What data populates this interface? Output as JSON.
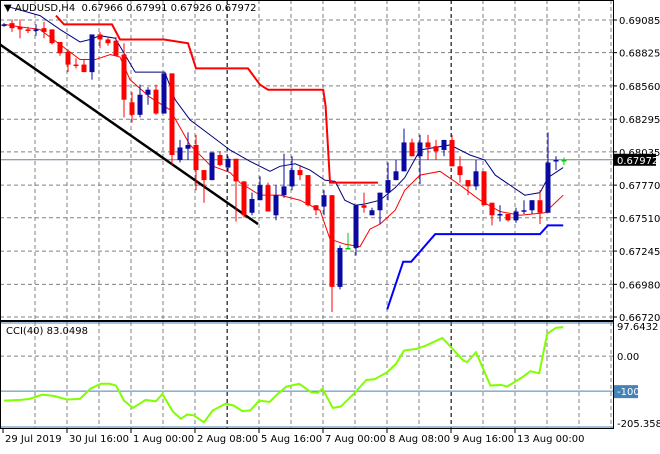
{
  "header": {
    "symbol": "AUDUSD,H4",
    "open": "0.67966",
    "high": "0.67991",
    "low": "0.67926",
    "close": "0.67972"
  },
  "colors": {
    "bull": "#0a0aa0",
    "bear": "#ff0000",
    "doji": "#00cc00",
    "resistance": "#ff0000",
    "support": "#0000ff",
    "fast_ma": "#ff0000",
    "slow_ma": "#000080",
    "trendline": "#000000",
    "cci": "#80ff00",
    "level": "#4682b4",
    "grid": "#808080"
  },
  "chart_data": [
    {
      "type": "candlestick",
      "title": "AUDUSD,H4",
      "price_ticks": [
        "0.69085",
        "0.68825",
        "0.68560",
        "0.68295",
        "0.68035",
        "0.67770",
        "0.67510",
        "0.67245",
        "0.66980",
        "0.66720"
      ],
      "ylim": [
        0.6672,
        0.69085
      ],
      "current_price": "0.67972",
      "x_labels": [
        {
          "index": 1,
          "label": "29 Jul 2019"
        },
        {
          "index": 9,
          "label": "30 Jul 16:00"
        },
        {
          "index": 17,
          "label": "1 Aug 00:00"
        },
        {
          "index": 25,
          "label": "2 Aug 08:00"
        },
        {
          "index": 33,
          "label": "5 Aug 16:00"
        },
        {
          "index": 41,
          "label": "7 Aug 00:00"
        },
        {
          "index": 49,
          "label": "8 Aug 08:00"
        },
        {
          "index": 57,
          "label": "9 Aug 16:00"
        },
        {
          "index": 65,
          "label": "13 Aug 00:00"
        }
      ],
      "candles_ohlc": [
        [
          0.6904,
          0.6906,
          0.6903,
          0.6905
        ],
        [
          0.6906,
          0.6909,
          0.6899,
          0.6902
        ],
        [
          0.6903,
          0.6909,
          0.6894,
          0.6901
        ],
        [
          0.6901,
          0.6903,
          0.6898,
          0.69
        ],
        [
          0.69,
          0.6905,
          0.6896,
          0.6901
        ],
        [
          0.6902,
          0.6907,
          0.6894,
          0.6899
        ],
        [
          0.6901,
          0.6901,
          0.6889,
          0.689
        ],
        [
          0.6891,
          0.6891,
          0.688,
          0.6882
        ],
        [
          0.6883,
          0.6885,
          0.6867,
          0.6873
        ],
        [
          0.6873,
          0.6878,
          0.687,
          0.6872
        ],
        [
          0.6873,
          0.6877,
          0.6867,
          0.6867
        ],
        [
          0.6867,
          0.6897,
          0.6861,
          0.6897
        ],
        [
          0.6897,
          0.6899,
          0.6886,
          0.6893
        ],
        [
          0.6893,
          0.6895,
          0.6888,
          0.689
        ],
        [
          0.6892,
          0.6895,
          0.688,
          0.688
        ],
        [
          0.6881,
          0.689,
          0.6831,
          0.6845
        ],
        [
          0.6843,
          0.6851,
          0.6827,
          0.6833
        ],
        [
          0.6833,
          0.6857,
          0.6831,
          0.6849
        ],
        [
          0.6849,
          0.6855,
          0.6841,
          0.6853
        ],
        [
          0.6853,
          0.6857,
          0.6833,
          0.6834
        ],
        [
          0.6834,
          0.6866,
          0.6834,
          0.6866
        ],
        [
          0.6866,
          0.6866,
          0.6793,
          0.6801
        ],
        [
          0.6797,
          0.6813,
          0.6795,
          0.6807
        ],
        [
          0.6806,
          0.6819,
          0.6797,
          0.6809
        ],
        [
          0.6809,
          0.6817,
          0.6773,
          0.6789
        ],
        [
          0.6789,
          0.6789,
          0.6763,
          0.6781
        ],
        [
          0.6781,
          0.6803,
          0.6781,
          0.6803
        ],
        [
          0.6801,
          0.6804,
          0.6792,
          0.6793
        ],
        [
          0.6791,
          0.68,
          0.6788,
          0.6798
        ],
        [
          0.6798,
          0.6798,
          0.6748,
          0.678
        ],
        [
          0.678,
          0.678,
          0.6751,
          0.6753
        ],
        [
          0.6755,
          0.6771,
          0.6753,
          0.6766
        ],
        [
          0.6765,
          0.6784,
          0.6765,
          0.6777
        ],
        [
          0.6777,
          0.6779,
          0.6756,
          0.6756
        ],
        [
          0.6753,
          0.6777,
          0.6749,
          0.6769
        ],
        [
          0.6769,
          0.6802,
          0.6767,
          0.6776
        ],
        [
          0.6776,
          0.68,
          0.6773,
          0.6789
        ],
        [
          0.6789,
          0.6793,
          0.6781,
          0.6785
        ],
        [
          0.6785,
          0.6785,
          0.676,
          0.6761
        ],
        [
          0.6761,
          0.6761,
          0.6753,
          0.6757
        ],
        [
          0.676,
          0.6773,
          0.6753,
          0.6769
        ],
        [
          0.6769,
          0.6769,
          0.6676,
          0.6696
        ],
        [
          0.6696,
          0.6729,
          0.6694,
          0.6727
        ],
        [
          0.6727,
          0.6739,
          0.6726,
          0.6727
        ],
        [
          0.6727,
          0.6761,
          0.6721,
          0.6761
        ],
        [
          0.6761,
          0.6771,
          0.6755,
          0.6759
        ],
        [
          0.6753,
          0.6759,
          0.6753,
          0.6757
        ],
        [
          0.6757,
          0.6771,
          0.6746,
          0.6771
        ],
        [
          0.6771,
          0.6795,
          0.6765,
          0.6781
        ],
        [
          0.6781,
          0.6797,
          0.6781,
          0.6788
        ],
        [
          0.6788,
          0.6822,
          0.6788,
          0.6811
        ],
        [
          0.6811,
          0.6814,
          0.68,
          0.68
        ],
        [
          0.68,
          0.6817,
          0.6778,
          0.6811
        ],
        [
          0.6811,
          0.6817,
          0.6797,
          0.6807
        ],
        [
          0.6808,
          0.6813,
          0.6797,
          0.6804
        ],
        [
          0.6805,
          0.6813,
          0.68,
          0.6813
        ],
        [
          0.6813,
          0.6817,
          0.6792,
          0.6792
        ],
        [
          0.6792,
          0.68,
          0.6779,
          0.6785
        ],
        [
          0.6781,
          0.6781,
          0.6769,
          0.6776
        ],
        [
          0.6776,
          0.6797,
          0.6773,
          0.6788
        ],
        [
          0.6788,
          0.6788,
          0.6761,
          0.6761
        ],
        [
          0.6763,
          0.6763,
          0.6745,
          0.6753
        ],
        [
          0.6753,
          0.6761,
          0.6748,
          0.6754
        ],
        [
          0.6754,
          0.6754,
          0.6748,
          0.6749
        ],
        [
          0.6749,
          0.6759,
          0.6747,
          0.6756
        ],
        [
          0.6756,
          0.6765,
          0.6754,
          0.6757
        ],
        [
          0.6757,
          0.6765,
          0.6754,
          0.6765
        ],
        [
          0.6765,
          0.6773,
          0.6746,
          0.6755
        ],
        [
          0.6755,
          0.6819,
          0.6755,
          0.6795
        ],
        [
          0.6796,
          0.68,
          0.6789,
          0.6797
        ],
        [
          0.6797,
          0.6799,
          0.6793,
          0.6797
        ]
      ],
      "resistance_line": [
        [
          7.5,
          0.6912
        ],
        [
          8.5,
          0.6905
        ],
        [
          14.5,
          0.6905
        ],
        [
          15.5,
          0.6893
        ],
        [
          21,
          0.6893
        ],
        [
          24,
          0.689
        ],
        [
          25,
          0.687
        ],
        [
          31.5,
          0.687
        ],
        [
          33,
          0.6857
        ],
        [
          34,
          0.6853
        ],
        [
          40.9,
          0.6853
        ],
        [
          41.2,
          0.684
        ],
        [
          41.75,
          0.6779
        ],
        [
          47.75,
          0.6779
        ]
      ],
      "support_line": [
        [
          48.9,
          0.6678
        ],
        [
          50.9,
          0.6716
        ],
        [
          51.9,
          0.6716
        ],
        [
          54.9,
          0.6738
        ],
        [
          68,
          0.6738
        ],
        [
          69,
          0.6745
        ],
        [
          70.9,
          0.6745
        ]
      ],
      "trendline": [
        [
          0.5,
          0.6889
        ],
        [
          32.75,
          0.6746
        ]
      ],
      "fast_ma": [
        [
          1,
          0.6905
        ],
        [
          3,
          0.6903
        ],
        [
          5.5,
          0.6901
        ],
        [
          8,
          0.6889
        ],
        [
          10.5,
          0.6877
        ],
        [
          12.4,
          0.6877
        ],
        [
          14.3,
          0.6881
        ],
        [
          15.5,
          0.6879
        ],
        [
          16.75,
          0.6861
        ],
        [
          19.25,
          0.6847
        ],
        [
          21.75,
          0.6837
        ],
        [
          24.25,
          0.6809
        ],
        [
          26.75,
          0.6793
        ],
        [
          29.25,
          0.6787
        ],
        [
          30.5,
          0.6779
        ],
        [
          33,
          0.6769
        ],
        [
          35.5,
          0.6769
        ],
        [
          38,
          0.6765
        ],
        [
          40.5,
          0.6757
        ],
        [
          41.75,
          0.6734
        ],
        [
          43.6,
          0.673
        ],
        [
          45.5,
          0.6728
        ],
        [
          46.75,
          0.6742
        ],
        [
          48,
          0.6746
        ],
        [
          49.9,
          0.6757
        ],
        [
          51.1,
          0.6773
        ],
        [
          53,
          0.6785
        ],
        [
          55.5,
          0.6788
        ],
        [
          58,
          0.6777
        ],
        [
          60.5,
          0.6765
        ],
        [
          63,
          0.6756
        ],
        [
          65.5,
          0.6753
        ],
        [
          68.6,
          0.6755
        ],
        [
          70.9,
          0.6769
        ]
      ],
      "slow_ma": [
        [
          1,
          0.692
        ],
        [
          5.5,
          0.6912
        ],
        [
          8,
          0.6901
        ],
        [
          10.5,
          0.6891
        ],
        [
          11.75,
          0.6893
        ],
        [
          13,
          0.6896
        ],
        [
          14.9,
          0.6894
        ],
        [
          16.1,
          0.6881
        ],
        [
          17.4,
          0.6867
        ],
        [
          21.1,
          0.6867
        ],
        [
          22.4,
          0.6845
        ],
        [
          24.25,
          0.6829
        ],
        [
          26.75,
          0.6817
        ],
        [
          29.25,
          0.6805
        ],
        [
          31.75,
          0.6796
        ],
        [
          34.25,
          0.6788
        ],
        [
          35.5,
          0.6792
        ],
        [
          37.4,
          0.6794
        ],
        [
          39.25,
          0.6789
        ],
        [
          41.1,
          0.6781
        ],
        [
          42.4,
          0.678
        ],
        [
          43.6,
          0.6765
        ],
        [
          44.9,
          0.6761
        ],
        [
          46.1,
          0.6762
        ],
        [
          48,
          0.6765
        ],
        [
          49.9,
          0.6775
        ],
        [
          51.1,
          0.6783
        ],
        [
          53,
          0.6805
        ],
        [
          56.75,
          0.6809
        ],
        [
          59.25,
          0.6801
        ],
        [
          61.1,
          0.6797
        ],
        [
          62.4,
          0.6785
        ],
        [
          64.25,
          0.6777
        ],
        [
          66.1,
          0.6769
        ],
        [
          68,
          0.6771
        ],
        [
          69,
          0.6783
        ],
        [
          70.9,
          0.6791
        ]
      ]
    },
    {
      "type": "line",
      "title": "CCI(40) 83.0498",
      "name": "CCI(40)",
      "current_value": "83.0498",
      "ylim": [
        -205.3584,
        97.6432
      ],
      "tick_labels": [
        "97.6432",
        "0.00",
        "-100",
        "-205.3584"
      ],
      "levels": [
        -100
      ],
      "points": [
        [
          1.0,
          -127
        ],
        [
          3.1,
          -125
        ],
        [
          4.2,
          -122
        ],
        [
          5.8,
          -110
        ],
        [
          7.3,
          -114
        ],
        [
          8.9,
          -124
        ],
        [
          10.5,
          -122
        ],
        [
          11.8,
          -93
        ],
        [
          13.1,
          -79
        ],
        [
          14.2,
          -79
        ],
        [
          15.0,
          -84
        ],
        [
          16.0,
          -127
        ],
        [
          17.1,
          -148
        ],
        [
          18.7,
          -125
        ],
        [
          20.0,
          -129
        ],
        [
          20.8,
          -108
        ],
        [
          22.1,
          -158
        ],
        [
          23.1,
          -179
        ],
        [
          23.9,
          -167
        ],
        [
          24.7,
          -169
        ],
        [
          26.0,
          -189
        ],
        [
          27.1,
          -155
        ],
        [
          28.7,
          -136
        ],
        [
          29.7,
          -141
        ],
        [
          30.8,
          -157
        ],
        [
          31.8,
          -155
        ],
        [
          32.9,
          -127
        ],
        [
          34.2,
          -131
        ],
        [
          35.2,
          -108
        ],
        [
          36.3,
          -87
        ],
        [
          37.9,
          -79
        ],
        [
          39.4,
          -103
        ],
        [
          40.2,
          -105
        ],
        [
          40.8,
          -93
        ],
        [
          42.1,
          -148
        ],
        [
          43.1,
          -144
        ],
        [
          44.7,
          -108
        ],
        [
          46.3,
          -68
        ],
        [
          47.3,
          -66
        ],
        [
          48.9,
          -46
        ],
        [
          50.0,
          -22
        ],
        [
          51.0,
          16
        ],
        [
          52.6,
          21
        ],
        [
          53.7,
          30
        ],
        [
          55.8,
          52
        ],
        [
          58.4,
          -12
        ],
        [
          58.9,
          -17
        ],
        [
          60.0,
          11
        ],
        [
          61.8,
          -84
        ],
        [
          63.1,
          -82
        ],
        [
          63.9,
          -87
        ],
        [
          65.8,
          -60
        ],
        [
          66.8,
          -43
        ],
        [
          67.9,
          -49
        ],
        [
          68.9,
          64
        ],
        [
          70.0,
          81
        ],
        [
          70.9,
          83
        ]
      ]
    }
  ]
}
